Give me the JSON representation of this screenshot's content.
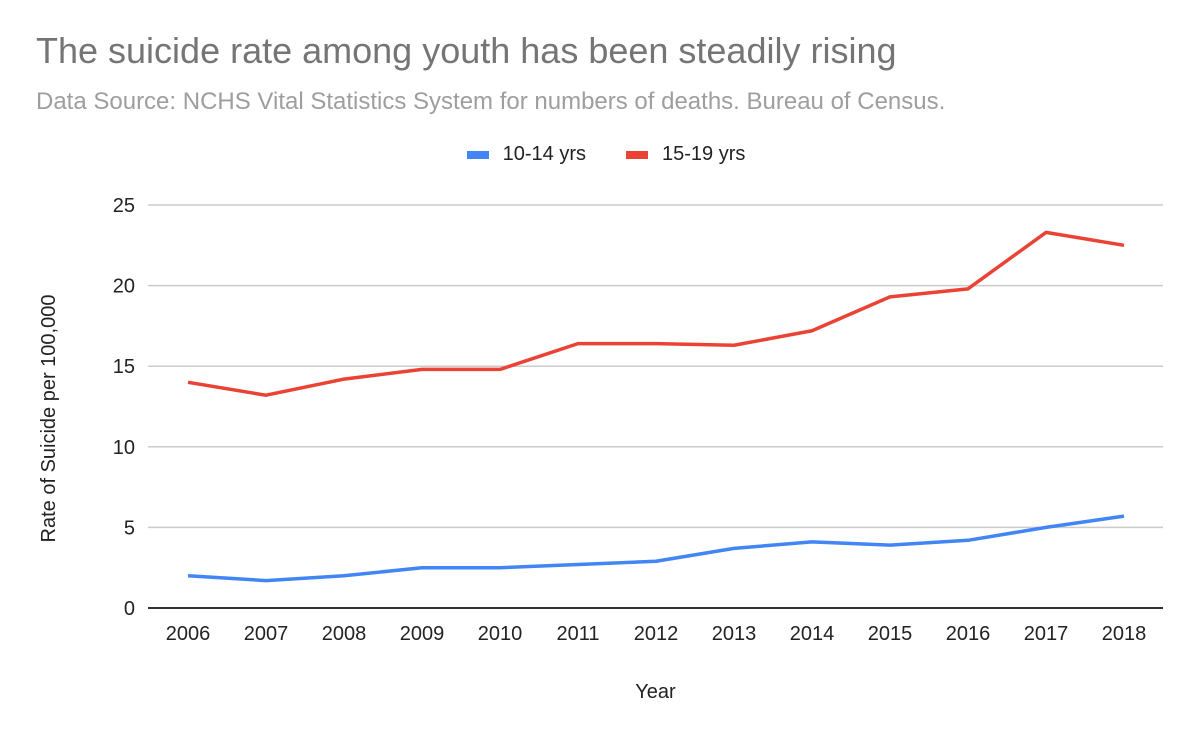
{
  "chart_data": {
    "type": "line",
    "title": "The suicide rate among youth has been steadily rising",
    "subtitle": "Data Source: NCHS Vital Statistics System for numbers of deaths. Bureau of Census.",
    "xlabel": "Year",
    "ylabel": "Rate of Suicide per 100,000",
    "categories": [
      "2006",
      "2007",
      "2008",
      "2009",
      "2010",
      "2011",
      "2012",
      "2013",
      "2014",
      "2015",
      "2016",
      "2017",
      "2018"
    ],
    "ylim": [
      0,
      25
    ],
    "yticks": [
      "0",
      "5",
      "10",
      "15",
      "20",
      "25"
    ],
    "ytick_values": [
      0,
      5,
      10,
      15,
      20,
      25
    ],
    "grid": true,
    "legend_position": "top-center",
    "series": [
      {
        "name": "10-14 yrs",
        "color": "#4285f4",
        "values": [
          2.0,
          1.7,
          2.0,
          2.5,
          2.5,
          2.7,
          2.9,
          3.7,
          4.1,
          3.9,
          4.2,
          5.0,
          5.7
        ]
      },
      {
        "name": "15-19 yrs",
        "color": "#ea4335",
        "values": [
          14.0,
          13.2,
          14.2,
          14.8,
          14.8,
          16.4,
          16.4,
          16.3,
          17.2,
          19.3,
          19.8,
          23.3,
          22.5
        ]
      }
    ]
  },
  "colors": {
    "title": "#757575",
    "subtitle": "#9e9e9e",
    "gridline": "#cccccc",
    "baseline": "#333333"
  }
}
